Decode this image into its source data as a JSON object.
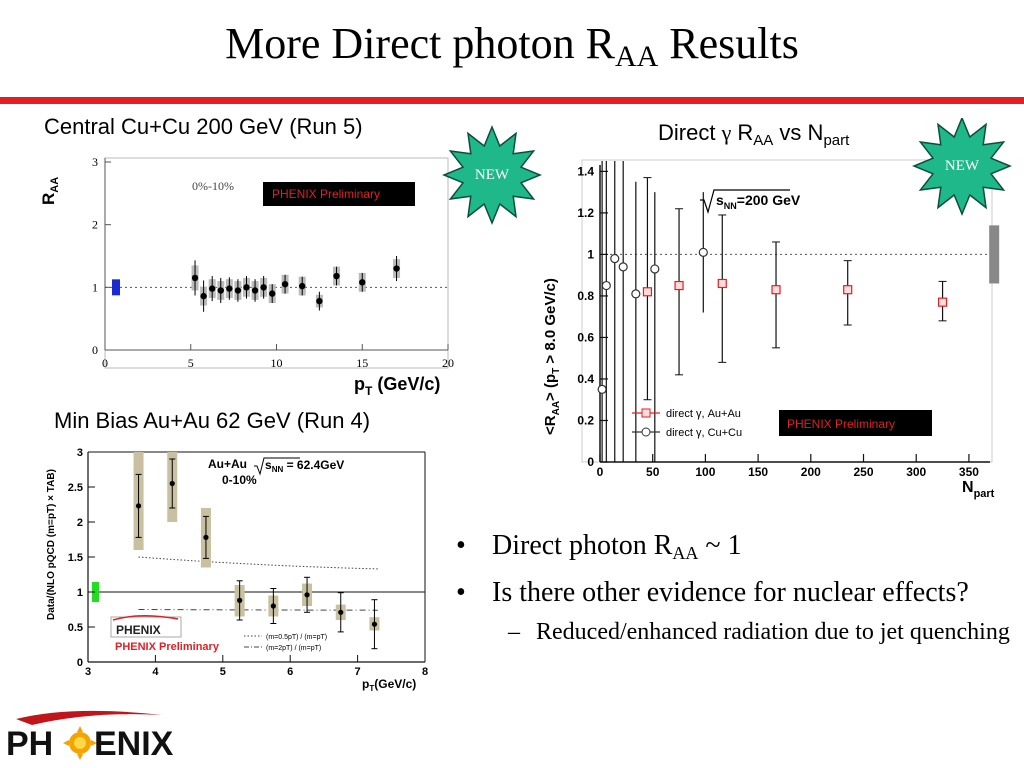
{
  "slide": {
    "title_main": "More Direct photon R",
    "title_sub": "AA",
    "title_end": " Results"
  },
  "captions": {
    "left_top": "Central Cu+Cu 200 GeV (Run 5)",
    "right_top_a": "Direct ",
    "right_top_gamma": "γ",
    "right_top_b": " R",
    "right_top_sub1": "AA",
    "right_top_c": " vs N",
    "right_top_sub2": "part",
    "left_bottom": "Min Bias Au+Au 62 GeV (Run 4)"
  },
  "badges": {
    "new1": "NEW",
    "new2": "NEW"
  },
  "bullets": {
    "b1_text": "Direct photon R",
    "b1_sub": "AA",
    "b1_end": " ~ 1",
    "b2": "Is there other evidence for nuclear effects?",
    "b3": "Reduced/enhanced radiation due to jet quenching"
  },
  "logo": {
    "left": "PH",
    "right": "ENIX"
  },
  "colors": {
    "red_bar": "#e31e24",
    "badge": "#1fb88a",
    "cucu_box": "#1a2ad0",
    "auau_box": "#22dd22",
    "sys_band": "#c8c0a0"
  },
  "chart_data": [
    {
      "type": "scatter",
      "xlabel_text": "p",
      "xlabel_sub": "T",
      "xlabel_unit": " (GeV/c)",
      "ylabel_text": "R",
      "ylabel_sub": "AA",
      "centrality": "0%-10%",
      "preliminary": "PHENIX Preliminary",
      "xlim": [
        0,
        20
      ],
      "ylim": [
        0,
        3
      ],
      "xticks": [
        0,
        5,
        10,
        15,
        20
      ],
      "yticks": [
        0,
        1,
        2,
        3
      ],
      "reference_line": 1,
      "points": [
        {
          "x": 5.25,
          "y": 1.15,
          "err": 0.28,
          "sys": 0.2
        },
        {
          "x": 5.75,
          "y": 0.86,
          "err": 0.25,
          "sys": 0.15
        },
        {
          "x": 6.25,
          "y": 0.98,
          "err": 0.2,
          "sys": 0.15
        },
        {
          "x": 6.75,
          "y": 0.95,
          "err": 0.2,
          "sys": 0.15
        },
        {
          "x": 7.25,
          "y": 0.98,
          "err": 0.18,
          "sys": 0.15
        },
        {
          "x": 7.75,
          "y": 0.95,
          "err": 0.18,
          "sys": 0.15
        },
        {
          "x": 8.25,
          "y": 1.0,
          "err": 0.18,
          "sys": 0.15
        },
        {
          "x": 8.75,
          "y": 0.95,
          "err": 0.18,
          "sys": 0.15
        },
        {
          "x": 9.25,
          "y": 1.0,
          "err": 0.18,
          "sys": 0.15
        },
        {
          "x": 9.75,
          "y": 0.9,
          "err": 0.15,
          "sys": 0.15
        },
        {
          "x": 10.5,
          "y": 1.05,
          "err": 0.15,
          "sys": 0.15
        },
        {
          "x": 11.5,
          "y": 1.02,
          "err": 0.15,
          "sys": 0.15
        },
        {
          "x": 12.5,
          "y": 0.78,
          "err": 0.15,
          "sys": 0.1
        },
        {
          "x": 13.5,
          "y": 1.18,
          "err": 0.15,
          "sys": 0.15
        },
        {
          "x": 15.0,
          "y": 1.08,
          "err": 0.15,
          "sys": 0.15
        },
        {
          "x": 17.0,
          "y": 1.3,
          "err": 0.2,
          "sys": 0.15
        }
      ]
    },
    {
      "type": "scatter",
      "xlabel_text": "N",
      "xlabel_sub": "part",
      "ylabel_text": "<R",
      "ylabel_sub1": "AA",
      "ylabel_mid": "> (p",
      "ylabel_sub2": "T",
      "ylabel_end": " > 8.0 GeV/c)",
      "energy_text": "s",
      "energy_sub": "NN",
      "energy_end": "=200 GeV",
      "preliminary": "PHENIX Preliminary",
      "xlim": [
        0,
        370
      ],
      "ylim": [
        0,
        1.45
      ],
      "xticks": [
        0,
        50,
        100,
        150,
        200,
        250,
        300,
        350
      ],
      "yticks": [
        0,
        0.2,
        0.4,
        0.6,
        0.8,
        1,
        1.2,
        1.4
      ],
      "reference_line": 1,
      "legend": [
        {
          "name": "direct γ, Au+Au",
          "color": "#e31e24"
        },
        {
          "name": "direct γ, Cu+Cu",
          "color": "#333333"
        }
      ],
      "series": [
        {
          "name": "direct γ, Au+Au",
          "points": [
            {
              "x": 45,
              "y": 0.82,
              "lo": 0.3,
              "hi": 1.37
            },
            {
              "x": 75,
              "y": 0.85,
              "lo": 0.42,
              "hi": 1.22
            },
            {
              "x": 116,
              "y": 0.86,
              "lo": 0.48,
              "hi": 1.19
            },
            {
              "x": 167,
              "y": 0.83,
              "lo": 0.55,
              "hi": 1.06
            },
            {
              "x": 235,
              "y": 0.83,
              "lo": 0.66,
              "hi": 0.97
            },
            {
              "x": 325,
              "y": 0.77,
              "lo": 0.68,
              "hi": 0.87
            }
          ]
        },
        {
          "name": "direct γ, Cu+Cu",
          "points": [
            {
              "x": 2,
              "y": 0.35,
              "lo": 0.0,
              "hi": 1.45
            },
            {
              "x": 6,
              "y": 0.85,
              "lo": 0.0,
              "hi": 1.45
            },
            {
              "x": 14,
              "y": 0.98,
              "lo": 0.0,
              "hi": 1.45
            },
            {
              "x": 22,
              "y": 0.94,
              "lo": 0.0,
              "hi": 1.45
            },
            {
              "x": 34,
              "y": 0.81,
              "lo": 0.0,
              "hi": 1.35
            },
            {
              "x": 52,
              "y": 0.93,
              "lo": 0.0,
              "hi": 1.3
            },
            {
              "x": 98,
              "y": 1.01,
              "lo": 0.72,
              "hi": 1.3
            }
          ]
        }
      ],
      "global_sys": {
        "x": 355,
        "lo": 0.86,
        "hi": 1.14
      }
    },
    {
      "type": "scatter",
      "xlabel_text": "p",
      "xlabel_sub": "T",
      "xlabel_unit": "(GeV/c)",
      "ylabel": "Data/(NLO pQCD (m=pT) × TAB)",
      "system_text": "Au+Au ",
      "energy_text": "s",
      "energy_sub": "NN",
      "energy_end": " = 62.4GeV",
      "centrality": "0-10%",
      "preliminary": "PHENIX Preliminary",
      "logo": "PHENIX",
      "xlim": [
        3,
        8
      ],
      "ylim": [
        0,
        3
      ],
      "xticks": [
        3,
        4,
        5,
        6,
        7,
        8
      ],
      "yticks": [
        0,
        0.5,
        1,
        1.5,
        2,
        2.5,
        3
      ],
      "reference_line": 1,
      "curve_legend": [
        {
          "name": "(m=0.5pT) / (m=pT)",
          "style": "dotted"
        },
        {
          "name": "(m=2pT) / (m=pT)",
          "style": "dashdot"
        }
      ],
      "curve_upper": {
        "x": [
          3.75,
          7.3
        ],
        "y": [
          1.5,
          1.33
        ]
      },
      "curve_lower": {
        "x": [
          3.75,
          7.3
        ],
        "y": [
          0.75,
          0.74
        ]
      },
      "points": [
        {
          "x": 3.75,
          "y": 2.23,
          "err": 0.45,
          "sys_lo": 1.6,
          "sys_hi": 3.0
        },
        {
          "x": 4.25,
          "y": 2.55,
          "err": 0.35,
          "sys_lo": 2.0,
          "sys_hi": 3.0
        },
        {
          "x": 4.75,
          "y": 1.78,
          "err": 0.3,
          "sys_lo": 1.35,
          "sys_hi": 2.2
        },
        {
          "x": 5.25,
          "y": 0.88,
          "err": 0.28,
          "sys_lo": 0.65,
          "sys_hi": 1.1
        },
        {
          "x": 5.75,
          "y": 0.8,
          "err": 0.25,
          "sys_lo": 0.65,
          "sys_hi": 0.95
        },
        {
          "x": 6.25,
          "y": 0.96,
          "err": 0.25,
          "sys_lo": 0.8,
          "sys_hi": 1.12
        },
        {
          "x": 6.75,
          "y": 0.71,
          "err": 0.28,
          "sys_lo": 0.6,
          "sys_hi": 0.82
        },
        {
          "x": 7.25,
          "y": 0.54,
          "err": 0.35,
          "sys_lo": 0.45,
          "sys_hi": 0.64
        }
      ]
    }
  ]
}
